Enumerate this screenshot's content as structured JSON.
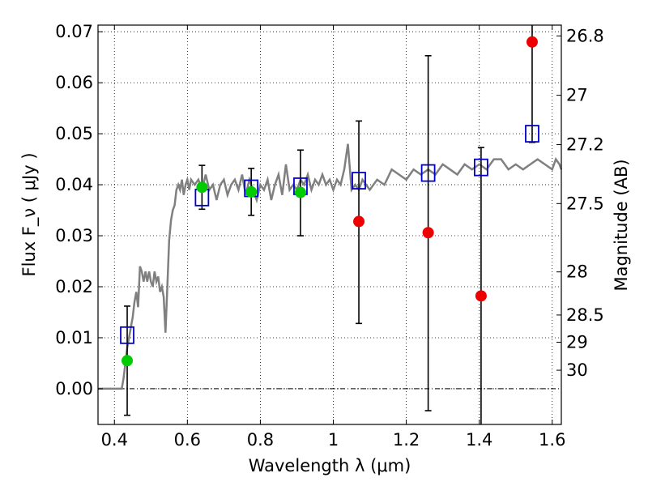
{
  "chart_data": {
    "type": "scatter",
    "xlabel": "Wavelength  λ (μm)",
    "ylabel": "Flux  F_ν  ( μJy )",
    "y2label": "Magnitude (AB)",
    "xlim": [
      0.355,
      1.625
    ],
    "ylim": [
      -0.007,
      0.0713
    ],
    "grid": true,
    "x_ticks": [
      {
        "value": 0.4,
        "label": "0.4"
      },
      {
        "value": 0.6,
        "label": "0.6"
      },
      {
        "value": 0.8,
        "label": "0.8"
      },
      {
        "value": 1.0,
        "label": "1"
      },
      {
        "value": 1.2,
        "label": "1.2"
      },
      {
        "value": 1.4,
        "label": "1.4"
      },
      {
        "value": 1.6,
        "label": "1.6"
      }
    ],
    "y_ticks": [
      {
        "value": 0.0,
        "label": "0.00"
      },
      {
        "value": 0.01,
        "label": "0.01"
      },
      {
        "value": 0.02,
        "label": "0.02"
      },
      {
        "value": 0.03,
        "label": "0.03"
      },
      {
        "value": 0.04,
        "label": "0.04"
      },
      {
        "value": 0.05,
        "label": "0.05"
      },
      {
        "value": 0.06,
        "label": "0.06"
      },
      {
        "value": 0.07,
        "label": "0.07"
      }
    ],
    "mag_ticks": [
      {
        "value": 26.8,
        "label": "26.8"
      },
      {
        "value": 27.0,
        "label": "27"
      },
      {
        "value": 27.2,
        "label": "27.2"
      },
      {
        "value": 27.5,
        "label": "27.5"
      },
      {
        "value": 28.0,
        "label": "28"
      },
      {
        "value": 28.5,
        "label": "28.5"
      },
      {
        "value": 29.0,
        "label": "29"
      },
      {
        "value": 30.0,
        "label": "30"
      }
    ],
    "model_spectrum": {
      "color": "#808080",
      "x": [
        0.355,
        0.4,
        0.42,
        0.425,
        0.43,
        0.435,
        0.44,
        0.445,
        0.45,
        0.455,
        0.46,
        0.465,
        0.47,
        0.475,
        0.48,
        0.485,
        0.49,
        0.495,
        0.5,
        0.505,
        0.51,
        0.515,
        0.52,
        0.525,
        0.53,
        0.535,
        0.54,
        0.545,
        0.55,
        0.555,
        0.56,
        0.565,
        0.57,
        0.575,
        0.58,
        0.585,
        0.59,
        0.595,
        0.6,
        0.605,
        0.61,
        0.62,
        0.63,
        0.64,
        0.65,
        0.66,
        0.67,
        0.68,
        0.69,
        0.7,
        0.71,
        0.72,
        0.73,
        0.74,
        0.75,
        0.76,
        0.77,
        0.78,
        0.79,
        0.8,
        0.81,
        0.82,
        0.83,
        0.84,
        0.85,
        0.86,
        0.87,
        0.88,
        0.89,
        0.9,
        0.91,
        0.92,
        0.93,
        0.94,
        0.95,
        0.96,
        0.97,
        0.98,
        0.99,
        1.0,
        1.01,
        1.02,
        1.03,
        1.04,
        1.05,
        1.06,
        1.07,
        1.08,
        1.09,
        1.1,
        1.12,
        1.14,
        1.16,
        1.18,
        1.2,
        1.22,
        1.24,
        1.26,
        1.28,
        1.3,
        1.32,
        1.34,
        1.36,
        1.38,
        1.4,
        1.42,
        1.44,
        1.46,
        1.48,
        1.5,
        1.52,
        1.54,
        1.56,
        1.58,
        1.6,
        1.61,
        1.62,
        1.625
      ],
      "y": [
        0.0,
        0.0,
        0.0,
        0.002,
        0.005,
        0.008,
        0.01,
        0.012,
        0.014,
        0.017,
        0.019,
        0.016,
        0.024,
        0.023,
        0.021,
        0.023,
        0.021,
        0.023,
        0.021,
        0.02,
        0.023,
        0.021,
        0.022,
        0.019,
        0.02,
        0.018,
        0.011,
        0.02,
        0.029,
        0.033,
        0.035,
        0.036,
        0.039,
        0.04,
        0.039,
        0.041,
        0.038,
        0.04,
        0.041,
        0.039,
        0.041,
        0.04,
        0.041,
        0.039,
        0.042,
        0.039,
        0.04,
        0.037,
        0.04,
        0.041,
        0.038,
        0.04,
        0.041,
        0.039,
        0.042,
        0.038,
        0.041,
        0.039,
        0.037,
        0.04,
        0.039,
        0.041,
        0.037,
        0.04,
        0.042,
        0.038,
        0.044,
        0.039,
        0.04,
        0.039,
        0.041,
        0.04,
        0.042,
        0.039,
        0.041,
        0.04,
        0.042,
        0.04,
        0.041,
        0.039,
        0.041,
        0.04,
        0.043,
        0.048,
        0.039,
        0.04,
        0.039,
        0.041,
        0.04,
        0.039,
        0.041,
        0.04,
        0.043,
        0.042,
        0.041,
        0.043,
        0.042,
        0.043,
        0.042,
        0.044,
        0.043,
        0.042,
        0.044,
        0.043,
        0.044,
        0.043,
        0.045,
        0.045,
        0.043,
        0.044,
        0.043,
        0.044,
        0.045,
        0.044,
        0.043,
        0.045,
        0.044,
        0.043
      ]
    },
    "series": [
      {
        "marker": "square",
        "color": "#0000cc",
        "points": [
          {
            "x": 0.435,
            "y": 0.0105
          },
          {
            "x": 0.64,
            "y": 0.0375
          },
          {
            "x": 0.775,
            "y": 0.0393
          },
          {
            "x": 0.91,
            "y": 0.0397
          },
          {
            "x": 1.07,
            "y": 0.0408
          },
          {
            "x": 1.26,
            "y": 0.0423
          },
          {
            "x": 1.405,
            "y": 0.0434
          },
          {
            "x": 1.545,
            "y": 0.05
          }
        ]
      },
      {
        "marker": "circle",
        "color": "#00cc00",
        "points": [
          {
            "x": 0.435,
            "y": 0.0055,
            "yerr_lo": -0.0052,
            "yerr_hi": 0.0162
          },
          {
            "x": 0.64,
            "y": 0.0395,
            "yerr_lo": 0.0352,
            "yerr_hi": 0.0438
          },
          {
            "x": 0.775,
            "y": 0.0386,
            "yerr_lo": 0.034,
            "yerr_hi": 0.0432
          },
          {
            "x": 0.91,
            "y": 0.0385,
            "yerr_lo": 0.03,
            "yerr_hi": 0.0468
          }
        ]
      },
      {
        "marker": "circle",
        "color": "#ee0000",
        "points": [
          {
            "x": 1.07,
            "y": 0.0328,
            "yerr_lo": 0.0128,
            "yerr_hi": 0.0525
          },
          {
            "x": 1.26,
            "y": 0.0306,
            "yerr_lo": -0.0043,
            "yerr_hi": 0.0653
          },
          {
            "x": 1.405,
            "y": 0.0182,
            "yerr_lo": -0.008,
            "yerr_hi": 0.0473
          },
          {
            "x": 1.545,
            "y": 0.068,
            "yerr_lo": 0.0483,
            "yerr_hi": 0.08
          }
        ]
      }
    ]
  }
}
